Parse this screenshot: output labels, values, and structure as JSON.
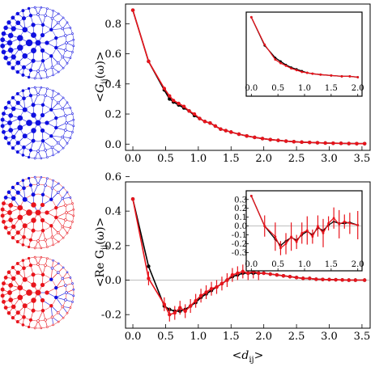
{
  "labels": {
    "top_ylabel_main": "<G",
    "top_ylabel_sub": "ij",
    "top_ylabel_tail": "(ω)>",
    "bottom_ylabel_main": "<Re G",
    "bottom_ylabel_sub": "ij",
    "bottom_ylabel_tail": "(ω)>",
    "xlabel_main": "<d",
    "xlabel_sub": "ij",
    "xlabel_tail": ">"
  },
  "colors": {
    "black_series": "#000000",
    "red_series": "#e8141c",
    "blue_nodes": "#1010e0",
    "red_nodes": "#e8141c",
    "zero_line": "#aaaaaa"
  },
  "chart_data": [
    {
      "type": "line",
      "panel": "top-main",
      "xlim": [
        -0.05,
        3.6
      ],
      "ylim": [
        -0.02,
        0.92
      ],
      "xticks": [
        "0.0",
        "0.5",
        "1.0",
        "1.5",
        "2.0",
        "2.5",
        "3.0",
        "3.5"
      ],
      "yticks": [
        "0.0",
        "0.2",
        "0.4",
        "0.6",
        "0.8"
      ],
      "series": [
        {
          "color": "black",
          "x": [
            0.0,
            0.24,
            0.48,
            0.56,
            0.62,
            0.7,
            0.78,
            0.86,
            0.94,
            1.02,
            1.1,
            1.18,
            1.26,
            1.34,
            1.42,
            1.5,
            1.62,
            1.74,
            1.86,
            1.98,
            2.1,
            2.22,
            2.34,
            2.46,
            2.58,
            2.7,
            2.82,
            2.94,
            3.06,
            3.18,
            3.3,
            3.42,
            3.54
          ],
          "y": [
            0.89,
            0.55,
            0.36,
            0.3,
            0.28,
            0.26,
            0.24,
            0.22,
            0.19,
            0.17,
            0.15,
            0.14,
            0.12,
            0.1,
            0.09,
            0.08,
            0.066,
            0.054,
            0.045,
            0.037,
            0.03,
            0.025,
            0.02,
            0.016,
            0.013,
            0.011,
            0.009,
            0.007,
            0.006,
            0.005,
            0.004,
            0.003,
            0.003
          ]
        },
        {
          "color": "red",
          "x": [
            0.0,
            0.24,
            0.48,
            0.56,
            0.62,
            0.7,
            0.78,
            0.86,
            0.94,
            1.02,
            1.1,
            1.18,
            1.26,
            1.34,
            1.42,
            1.5,
            1.62,
            1.74,
            1.86,
            1.98,
            2.1,
            2.22,
            2.34,
            2.46,
            2.58,
            2.7,
            2.82,
            2.94,
            3.06,
            3.18,
            3.3,
            3.42,
            3.54
          ],
          "y": [
            0.89,
            0.55,
            0.37,
            0.32,
            0.29,
            0.27,
            0.25,
            0.22,
            0.2,
            0.17,
            0.15,
            0.14,
            0.12,
            0.1,
            0.09,
            0.08,
            0.066,
            0.054,
            0.045,
            0.037,
            0.03,
            0.025,
            0.02,
            0.016,
            0.013,
            0.011,
            0.009,
            0.007,
            0.006,
            0.005,
            0.004,
            0.003,
            0.003
          ]
        }
      ]
    },
    {
      "type": "line",
      "panel": "top-inset",
      "xlim": [
        -0.02,
        2.05
      ],
      "ylim": [
        -0.01,
        0.75
      ],
      "xticks": [
        "0.0",
        "0.5",
        "1.0",
        "1.5",
        "2.0"
      ],
      "series": [
        {
          "color": "black",
          "x": [
            0.0,
            0.25,
            0.45,
            0.55,
            0.65,
            0.75,
            0.85,
            0.95,
            1.05,
            1.15,
            1.3,
            1.5,
            1.7,
            1.85,
            2.0
          ],
          "y": [
            0.72,
            0.4,
            0.26,
            0.22,
            0.18,
            0.15,
            0.13,
            0.11,
            0.09,
            0.08,
            0.07,
            0.06,
            0.05,
            0.05,
            0.04
          ]
        },
        {
          "color": "red",
          "x": [
            0.0,
            0.25,
            0.45,
            0.55,
            0.65,
            0.75,
            0.85,
            0.95,
            1.05,
            1.15,
            1.3,
            1.5,
            1.7,
            1.85,
            2.0
          ],
          "y": [
            0.72,
            0.41,
            0.24,
            0.2,
            0.17,
            0.14,
            0.12,
            0.1,
            0.09,
            0.08,
            0.07,
            0.06,
            0.05,
            0.05,
            0.04
          ]
        }
      ]
    },
    {
      "type": "line",
      "panel": "bottom-main",
      "xlim": [
        -0.05,
        3.6
      ],
      "ylim": [
        -0.26,
        0.56
      ],
      "xticks": [
        "0.0",
        "0.5",
        "1.0",
        "1.5",
        "2.0",
        "2.5",
        "3.0",
        "3.5"
      ],
      "yticks": [
        "-0.2",
        "0.0",
        "0.2",
        "0.4",
        "0.6"
      ],
      "series": [
        {
          "color": "black",
          "x": [
            0.0,
            0.24,
            0.48,
            0.56,
            0.64,
            0.72,
            0.8,
            0.88,
            0.96,
            1.04,
            1.12,
            1.2,
            1.28,
            1.36,
            1.44,
            1.52,
            1.6,
            1.68,
            1.76,
            1.84,
            1.92,
            2.0,
            2.1,
            2.2,
            2.3,
            2.4,
            2.5,
            2.6,
            2.7,
            2.8,
            2.9,
            3.0,
            3.1,
            3.2,
            3.3,
            3.4,
            3.54
          ],
          "y": [
            0.47,
            0.08,
            -0.15,
            -0.17,
            -0.18,
            -0.18,
            -0.17,
            -0.15,
            -0.13,
            -0.1,
            -0.08,
            -0.06,
            -0.04,
            -0.02,
            0.0,
            0.02,
            0.03,
            0.04,
            0.04,
            0.04,
            0.04,
            0.04,
            0.035,
            0.03,
            0.025,
            0.02,
            0.015,
            0.01,
            0.01,
            0.005,
            0.004,
            0.003,
            0.002,
            0.001,
            0.0,
            0.0,
            0.0
          ]
        },
        {
          "color": "red",
          "x": [
            0.0,
            0.24,
            0.48,
            0.56,
            0.64,
            0.72,
            0.8,
            0.88,
            0.96,
            1.04,
            1.12,
            1.2,
            1.28,
            1.36,
            1.44,
            1.52,
            1.6,
            1.68,
            1.76,
            1.84,
            1.92,
            2.0,
            2.1,
            2.2,
            2.3,
            2.4,
            2.5,
            2.6,
            2.7,
            2.8,
            2.9,
            3.0,
            3.1,
            3.2,
            3.3,
            3.4,
            3.54
          ],
          "y": [
            0.47,
            0.01,
            -0.14,
            -0.2,
            -0.19,
            -0.16,
            -0.18,
            -0.15,
            -0.12,
            -0.09,
            -0.07,
            -0.05,
            -0.04,
            -0.02,
            0.0,
            0.03,
            0.04,
            0.05,
            0.04,
            0.05,
            0.04,
            0.04,
            0.035,
            0.03,
            0.025,
            0.02,
            0.015,
            0.01,
            0.01,
            0.005,
            0.004,
            0.003,
            0.002,
            0.001,
            0.0,
            0.0,
            0.0
          ]
        }
      ]
    },
    {
      "type": "line",
      "panel": "bottom-inset",
      "xlim": [
        -0.02,
        2.05
      ],
      "ylim": [
        -0.36,
        0.38
      ],
      "xticks": [
        "0.0",
        "0.5",
        "1.0",
        "1.5",
        "2.0"
      ],
      "yticks": [
        "-0.3",
        "-0.2",
        "-0.1",
        "0.0",
        "0.1",
        "0.2",
        "0.3"
      ],
      "series": [
        {
          "color": "black",
          "x": [
            0.0,
            0.25,
            0.45,
            0.55,
            0.65,
            0.75,
            0.85,
            0.95,
            1.05,
            1.15,
            1.25,
            1.35,
            1.45,
            1.55,
            1.65,
            1.75,
            1.85,
            2.0
          ],
          "y": [
            0.34,
            0.0,
            -0.15,
            -0.22,
            -0.17,
            -0.13,
            -0.16,
            -0.1,
            -0.06,
            -0.1,
            -0.02,
            -0.05,
            0.01,
            0.05,
            0.03,
            0.03,
            0.04,
            0.01
          ]
        },
        {
          "color": "red",
          "x": [
            0.0,
            0.25,
            0.45,
            0.55,
            0.65,
            0.75,
            0.85,
            0.95,
            1.05,
            1.15,
            1.25,
            1.35,
            1.45,
            1.55,
            1.65,
            1.75,
            1.85,
            2.0
          ],
          "y": [
            0.34,
            0.0,
            -0.12,
            -0.25,
            -0.2,
            -0.12,
            -0.18,
            -0.08,
            -0.05,
            -0.12,
            0.0,
            -0.08,
            0.03,
            0.09,
            0.02,
            0.05,
            0.03,
            0.01
          ]
        }
      ]
    }
  ]
}
